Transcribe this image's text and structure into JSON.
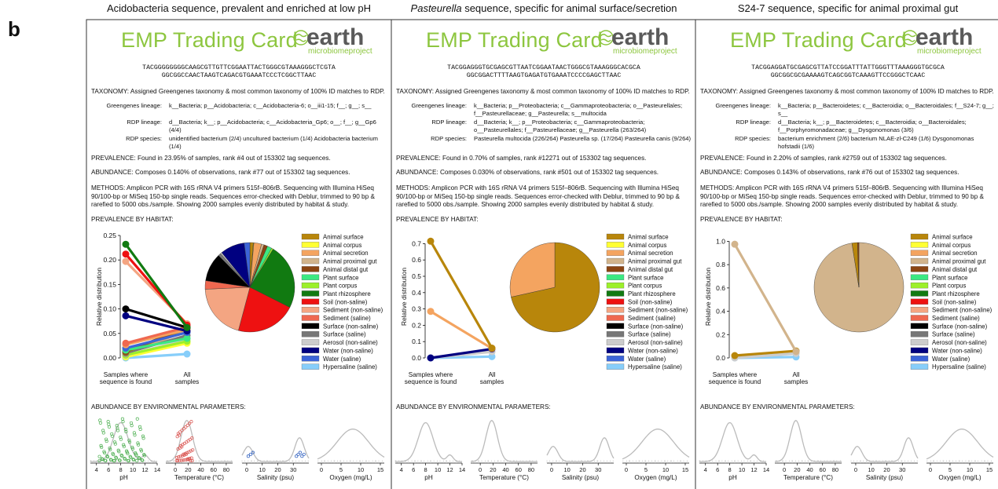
{
  "panel_letter": "b",
  "cards": [
    {
      "header_html": "Acidobacteria sequence, prevalent and enriched at low pH",
      "header_italic": "",
      "header_rest": "Acidobacteria sequence, prevalent and enriched at low pH",
      "logo_emp": "EMP Trading Card",
      "logo_earth": "earth",
      "logo_micro": "microbiomeproject",
      "seq1": "TACGGGGGGGGCAAGCGTTGTTCGGAATTACTGGGCGTAAAGGGCTCGTA",
      "seq2": "GGCGGCCAACTAAGTCAGACGTGAAATCCCTCGGCTTAAC",
      "taxonomy": "TAXONOMY: Assigned Greengenes taxonomy & most common taxonomy of 100% ID matches to RDP.",
      "gg_label": "Greengenes lineage:",
      "gg_value": "k__Bacteria; p__Acidobacteria; c__Acidobacteria-6; o__iii1-15; f__; g__; s__",
      "rdp_label": "RDP lineage:",
      "rdp_value": "d__Bacteria; k__; p__Acidobacteria; c__Acidobacteria_Gp6; o__; f__; g__Gp6 (4/4)",
      "rdps_label": "RDP species:",
      "rdps_value": "unidentified bacterium (2/4) uncultured bacterium (1/4) Acidobacteria bacterium (1/4)",
      "prevalence": "PREVALENCE: Found in 23.95% of samples, rank #4 out of 153302 tag sequences.",
      "abundance": "ABUNDANCE: Composes 0.140% of observations, rank #77 out of 153302 tag sequences.",
      "methods": "METHODS: Amplicon PCR with 16S rRNA V4 primers 515f–806rB. Sequencing with Illumina HiSeq 90/100-bp or MiSeq 150-bp single reads. Sequences error-checked with Deblur, trimmed to 90 bp & rarefied to 5000 obs./sample. Showing 2000 samples evenly distributed by habitat & study.",
      "prev_habitat": "PREVALENCE BY HABITAT:",
      "abund_env": "ABUNDANCE BY ENVIRONMENTAL PARAMETERS:",
      "ylabel": "Relative distribution",
      "xlabel_left": [
        "Samples where",
        "sequence is found"
      ],
      "xlabel_right": [
        "All",
        "samples"
      ],
      "yticks": [
        "0.00",
        "0.05",
        "0.10",
        "0.15",
        "0.20",
        "0.25"
      ],
      "ymax": 0.25,
      "slope": [
        {
          "h": "Plant rhizosphere",
          "a": 0.232,
          "b": 0.062
        },
        {
          "h": "Soil (non-saline)",
          "a": 0.212,
          "b": 0.067
        },
        {
          "h": "Sediment (non-saline)",
          "a": 0.197,
          "b": 0.07
        },
        {
          "h": "Surface (non-saline)",
          "a": 0.1,
          "b": 0.062
        },
        {
          "h": "Water (non-saline)",
          "a": 0.086,
          "b": 0.055
        },
        {
          "h": "Sediment (saline)",
          "a": 0.03,
          "b": 0.063
        },
        {
          "h": "Animal secretion",
          "a": 0.027,
          "b": 0.058
        },
        {
          "h": "Water (saline)",
          "a": 0.02,
          "b": 0.052
        },
        {
          "h": "Plant surface",
          "a": 0.016,
          "b": 0.04
        },
        {
          "h": "Animal distal gut",
          "a": 0.013,
          "b": 0.062
        },
        {
          "h": "Animal surface",
          "a": 0.012,
          "b": 0.06
        },
        {
          "h": "Surface (saline)",
          "a": 0.01,
          "b": 0.046
        },
        {
          "h": "Animal proximal gut",
          "a": 0.009,
          "b": 0.055
        },
        {
          "h": "Plant corpus",
          "a": 0.006,
          "b": 0.034
        },
        {
          "h": "Aerosol (non-saline)",
          "a": 0.005,
          "b": 0.038
        },
        {
          "h": "Animal corpus",
          "a": 0.002,
          "b": 0.03
        },
        {
          "h": "Hypersaline (saline)",
          "a": 0.0,
          "b": 0.008
        }
      ],
      "pie": [
        {
          "h": "Animal surface",
          "v": 0.012
        },
        {
          "h": "Animal corpus",
          "v": 0.002
        },
        {
          "h": "Animal secretion",
          "v": 0.027
        },
        {
          "h": "Animal proximal gut",
          "v": 0.009
        },
        {
          "h": "Animal distal gut",
          "v": 0.013
        },
        {
          "h": "Plant surface",
          "v": 0.016
        },
        {
          "h": "Plant corpus",
          "v": 0.006
        },
        {
          "h": "Plant rhizosphere",
          "v": 0.232
        },
        {
          "h": "Soil (non-saline)",
          "v": 0.212
        },
        {
          "h": "Sediment (non-saline)",
          "v": 0.197
        },
        {
          "h": "Sediment (saline)",
          "v": 0.03
        },
        {
          "h": "Surface (non-saline)",
          "v": 0.1
        },
        {
          "h": "Surface (saline)",
          "v": 0.01
        },
        {
          "h": "Aerosol (non-saline)",
          "v": 0.005
        },
        {
          "h": "Water (non-saline)",
          "v": 0.086
        },
        {
          "h": "Water (saline)",
          "v": 0.02
        }
      ],
      "env_points": true
    },
    {
      "header_italic": "Pasteurella",
      "header_rest": " sequence, specific for animal surface/secretion",
      "logo_emp": "EMP Trading Card",
      "logo_earth": "earth",
      "logo_micro": "microbiomeproject",
      "seq1": "TACGGAGGGTGCGAGCGTTAATCGGAATAACTGGGCGTAAAGGGCACGCA",
      "seq2": "GGCGGACTTTTAAGTGAGATGTGAAATCCCCGAGCTTAAC",
      "taxonomy": "TAXONOMY: Assigned Greengenes taxonomy & most common taxonomy of 100% ID matches to RDP.",
      "gg_label": "Greengenes lineage:",
      "gg_value": "k__Bacteria; p__Proteobacteria; c__Gammaproteobacteria; o__Pasteurellales; f__Pasteurellaceae; g__Pasteurella; s__multocida",
      "rdp_label": "RDP lineage:",
      "rdp_value": "d__Bacteria; k__; p__Proteobacteria; c__Gammaproteobacteria; o__Pasteurellales; f__Pasteurellaceae; g__Pasteurella (263/264)",
      "rdps_label": "RDP species:",
      "rdps_value": "Pasteurella multocida (226/264) Pasteurella sp. (17/264) Pasteurella canis (9/264)",
      "prevalence": "PREVALENCE: Found in 0.70% of samples, rank #12271 out of 153302 tag sequences.",
      "abundance": "ABUNDANCE: Composes 0.030% of observations, rank #501 out of 153302 tag sequences.",
      "methods": "METHODS: Amplicon PCR with 16S rRNA V4 primers 515f–806rB. Sequencing with Illumina HiSeq 90/100-bp or MiSeq 150-bp single reads. Sequences error-checked with Deblur, trimmed to 90 bp & rarefied to 5000 obs./sample. Showing 2000 samples evenly distributed by habitat & study.",
      "prev_habitat": "PREVALENCE BY HABITAT:",
      "abund_env": "ABUNDANCE BY ENVIRONMENTAL PARAMETERS:",
      "ylabel": "Relative distribution",
      "xlabel_left": [
        "Samples where",
        "sequence is found"
      ],
      "xlabel_right": [
        "All",
        "samples"
      ],
      "yticks": [
        "0.0",
        "0.1",
        "0.2",
        "0.3",
        "0.4",
        "0.5",
        "0.6",
        "0.7"
      ],
      "ymax": 0.75,
      "slope": [
        {
          "h": "Animal surface",
          "a": 0.715,
          "b": 0.06
        },
        {
          "h": "Animal secretion",
          "a": 0.285,
          "b": 0.058
        },
        {
          "h": "Water (non-saline)",
          "a": 0.0,
          "b": 0.055
        },
        {
          "h": "Aerosol (non-saline)",
          "a": 0.0,
          "b": 0.038
        },
        {
          "h": "Hypersaline (saline)",
          "a": 0.0,
          "b": 0.008
        }
      ],
      "pie": [
        {
          "h": "Animal surface",
          "v": 0.715
        },
        {
          "h": "Animal secretion",
          "v": 0.285
        }
      ],
      "env_points": false
    },
    {
      "header_italic": "",
      "header_rest": "S24-7 sequence, specific for animal proximal gut",
      "logo_emp": "EMP Trading Card",
      "logo_earth": "earth",
      "logo_micro": "microbiomeproject",
      "seq1": "TACGGAGGATGCGAGCGTTATCCGGATTTATTGGGTTTAAAGGGTGCGCA",
      "seq2": "GGCGGCGCGAAAAGTCAGCGGTCAAAGTTCCGGGCTCAAC",
      "taxonomy": "TAXONOMY: Assigned Greengenes taxonomy & most common taxonomy of 100% ID matches to RDP.",
      "gg_label": "Greengenes lineage:",
      "gg_value": "k__Bacteria; p__Bacteroidetes; c__Bacteroidia; o__Bacteroidales; f__S24-7; g__; s__",
      "rdp_label": "RDP lineage:",
      "rdp_value": "d__Bacteria; k__; p__Bacteroidetes; c__Bacteroidia; o__Bacteroidales; f__Porphyromonadaceae; g__Dysgonomonas (3/6)",
      "rdps_label": "RDP species:",
      "rdps_value": "bacterium enrichment (2/6) bacterium NLAE-zl-C249 (1/6) Dysgonomonas hofstadii (1/6)",
      "prevalence": "PREVALENCE: Found in 2.20% of samples, rank #2759 out of 153302 tag sequences.",
      "abundance": "ABUNDANCE: Composes 0.143% of observations, rank #76 out of 153302 tag sequences.",
      "methods": "METHODS: Amplicon PCR with 16S rRNA V4 primers 515f–806rB. Sequencing with Illumina HiSeq 90/100-bp or MiSeq 150-bp single reads. Sequences error-checked with Deblur, trimmed to 90 bp & rarefied to 5000 obs./sample. Showing 2000 samples evenly distributed by habitat & study.",
      "prev_habitat": "PREVALENCE BY HABITAT:",
      "abund_env": "ABUNDANCE BY ENVIRONMENTAL PARAMETERS:",
      "ylabel": "Relative distribution",
      "xlabel_left": [
        "Samples where",
        "sequence is found"
      ],
      "xlabel_right": [
        "All",
        "samples"
      ],
      "yticks": [
        "0.0",
        "0.2",
        "0.4",
        "0.6",
        "0.8",
        "1.0"
      ],
      "ymax": 1.05,
      "slope": [
        {
          "h": "Animal proximal gut",
          "a": 0.975,
          "b": 0.055
        },
        {
          "h": "Animal surface",
          "a": 0.02,
          "b": 0.06
        },
        {
          "h": "Aerosol (non-saline)",
          "a": 0.0,
          "b": 0.038
        },
        {
          "h": "Hypersaline (saline)",
          "a": 0.0,
          "b": 0.008
        }
      ],
      "pie": [
        {
          "h": "Animal proximal gut",
          "v": 0.975
        },
        {
          "h": "Animal surface",
          "v": 0.02
        },
        {
          "h": "Animal distal gut",
          "v": 0.005
        }
      ],
      "env_points": false
    }
  ],
  "legend": [
    {
      "h": "Animal surface",
      "c": "#b8860b"
    },
    {
      "h": "Animal corpus",
      "c": "#ffff33"
    },
    {
      "h": "Animal secretion",
      "c": "#f4a460"
    },
    {
      "h": "Animal proximal gut",
      "c": "#d2b48c"
    },
    {
      "h": "Animal distal gut",
      "c": "#8b4513"
    },
    {
      "h": "Plant surface",
      "c": "#3ce882"
    },
    {
      "h": "Plant corpus",
      "c": "#9cf02a"
    },
    {
      "h": "Plant rhizosphere",
      "c": "#117a11"
    },
    {
      "h": "Soil (non-saline)",
      "c": "#ee1111"
    },
    {
      "h": "Sediment (non-saline)",
      "c": "#f4a582"
    },
    {
      "h": "Sediment (saline)",
      "c": "#ef6850"
    },
    {
      "h": "Surface (non-saline)",
      "c": "#000000"
    },
    {
      "h": "Surface (saline)",
      "c": "#777777"
    },
    {
      "h": "Aerosol (non-saline)",
      "c": "#cccccc"
    },
    {
      "h": "Water (non-saline)",
      "c": "#000080"
    },
    {
      "h": "Water (saline)",
      "c": "#3c64d8"
    },
    {
      "h": "Hypersaline (saline)",
      "c": "#87cefa"
    }
  ],
  "env": [
    {
      "xlabel": "pH",
      "ticks": [
        "4",
        "6",
        "8",
        "10",
        "12",
        "14"
      ],
      "range": [
        3,
        14
      ],
      "peaks": [
        [
          8,
          0.9,
          1.2
        ],
        [
          12,
          0.15,
          0.5
        ]
      ]
    },
    {
      "xlabel": "Temperature (°C)",
      "ticks": [
        "0",
        "20",
        "40",
        "60",
        "80"
      ],
      "range": [
        -15,
        90
      ],
      "peaks": [
        [
          18,
          0.95,
          9
        ]
      ]
    },
    {
      "xlabel": "Salinity (psu)",
      "ticks": [
        "0",
        "10",
        "20",
        "30"
      ],
      "range": [
        -3,
        40
      ],
      "peaks": [
        [
          1,
          0.35,
          3
        ],
        [
          34,
          0.55,
          3
        ]
      ]
    },
    {
      "xlabel": "Oxygen (mg/L)",
      "ticks": [
        "0",
        "5",
        "10",
        "15"
      ],
      "range": [
        -1,
        16
      ],
      "peaks": [
        [
          8,
          0.75,
          4
        ]
      ]
    }
  ]
}
